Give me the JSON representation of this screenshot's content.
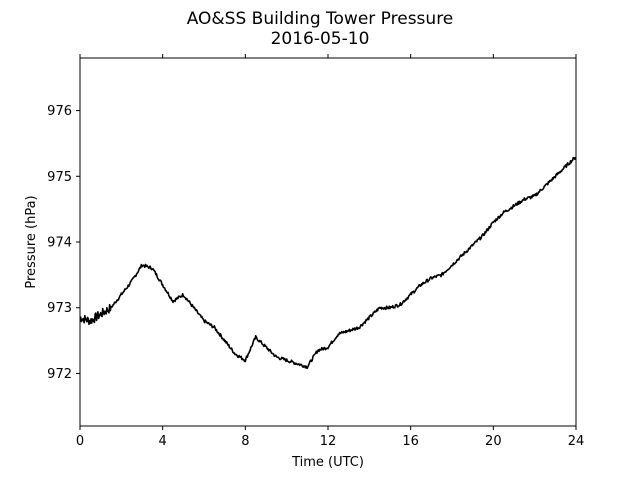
{
  "chart_data": {
    "type": "line",
    "title": "AO&SS Building Tower Pressure",
    "subtitle": "2016-05-10",
    "xlabel": "Time (UTC)",
    "ylabel": "Pressure (hPa)",
    "xlim": [
      0,
      24
    ],
    "ylim": [
      971.2,
      976.8
    ],
    "xticks": [
      0,
      4,
      8,
      12,
      16,
      20,
      24
    ],
    "xtick_labels": [
      "0",
      "4",
      "8",
      "12",
      "16",
      "20",
      "24"
    ],
    "yticks": [
      972,
      973,
      974,
      975,
      976
    ],
    "ytick_labels": [
      "972",
      "973",
      "974",
      "975",
      "976"
    ],
    "grid": false,
    "line_color": "#000000",
    "series": [
      {
        "x": [
          0.0,
          0.5,
          1.0,
          1.5,
          2.0,
          2.5,
          3.0,
          3.5,
          4.0,
          4.5,
          5.0,
          5.5,
          6.0,
          6.5,
          7.0,
          7.5,
          8.0,
          8.5,
          9.0,
          9.5,
          10.0,
          10.5,
          11.0,
          11.5,
          12.0,
          12.5,
          13.0,
          13.5,
          14.0,
          14.5,
          15.0,
          15.5,
          16.0,
          16.5,
          17.0,
          17.5,
          18.0,
          18.5,
          19.0,
          19.5,
          20.0,
          20.5,
          21.0,
          21.5,
          22.0,
          22.5,
          23.0,
          23.5,
          24.0
        ],
        "y": [
          972.85,
          972.8,
          972.9,
          973.0,
          973.2,
          973.4,
          973.65,
          973.6,
          973.35,
          973.1,
          973.2,
          973.0,
          972.8,
          972.7,
          972.5,
          972.3,
          972.2,
          972.55,
          972.4,
          972.25,
          972.2,
          972.15,
          972.1,
          972.35,
          972.4,
          972.6,
          972.65,
          972.7,
          972.85,
          973.0,
          973.0,
          973.05,
          973.2,
          973.35,
          973.45,
          973.5,
          973.65,
          973.8,
          973.95,
          974.1,
          974.3,
          974.45,
          974.55,
          974.65,
          974.7,
          974.85,
          975.0,
          975.15,
          975.3
        ]
      }
    ]
  }
}
